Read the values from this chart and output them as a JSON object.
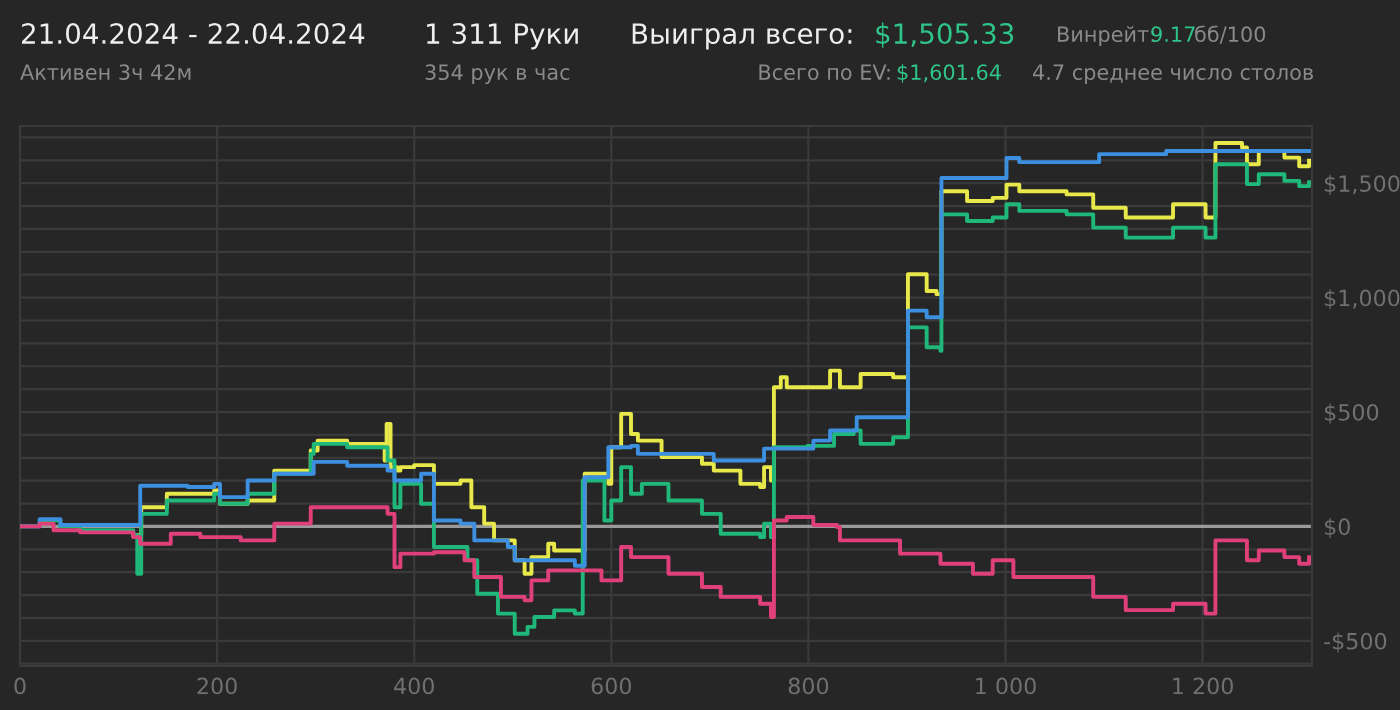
{
  "chart_data": {
    "type": "step",
    "title": "21.04.2024 - 22.04.2024",
    "subtitle": "Активен 3ч 42м",
    "annotations": [
      "1 311 Руки",
      "354 рук в час",
      "Выиграл всего:",
      "$1,505.33",
      "Всего по EV:",
      "$1,601.64",
      "Винрейт:",
      "9.17",
      "бб/100",
      "4.7 среднее число столов"
    ],
    "series": [
      {
        "color": "#e8e84a",
        "x": [
          115,
          123,
          149,
          197,
          203,
          231,
          258,
          295,
          302,
          332,
          370,
          372,
          376,
          383,
          386,
          400,
          420,
          447,
          458,
          471,
          481,
          502,
          512,
          519,
          536,
          542,
          566,
          573,
          597,
          600,
          610,
          620,
          627,
          641,
          651,
          692,
          704,
          731,
          751,
          755,
          762,
          765,
          772,
          778,
          805,
          822,
          832,
          853,
          886,
          900,
          901,
          920,
          930,
          935,
          961,
          987,
          1001,
          1014,
          1062,
          1089,
          1122,
          1170,
          1203,
          1213,
          1240,
          1245,
          1257,
          1283,
          1298,
          1308
        ],
        "values": [
          -38,
          84,
          143,
          157,
          99,
          113,
          244,
          332,
          375,
          361,
          288,
          448,
          259,
          244,
          259,
          268,
          186,
          201,
          84,
          12,
          -61,
          -148,
          -207,
          -134,
          -76,
          -105,
          -105,
          230,
          186,
          346,
          492,
          404,
          375,
          375,
          303,
          274,
          244,
          186,
          172,
          259,
          201,
          608,
          652,
          608,
          608,
          681,
          608,
          666,
          652,
          652,
          1102,
          1029,
          1015,
          1465,
          1422,
          1436,
          1494,
          1465,
          1451,
          1393,
          1350,
          1408,
          1350,
          1676,
          1656,
          1583,
          1641,
          1612,
          1574,
          1598
        ]
      },
      {
        "color": "#1fb87a",
        "x": [
          0,
          20,
          41,
          61,
          115,
          119,
          123,
          149,
          197,
          203,
          231,
          258,
          295,
          298,
          332,
          373,
          380,
          386,
          407,
          420,
          454,
          464,
          485,
          502,
          515,
          522,
          542,
          563,
          571,
          593,
          600,
          610,
          620,
          631,
          658,
          692,
          711,
          751,
          755,
          762,
          765,
          799,
          826,
          846,
          853,
          886,
          901,
          920,
          934,
          935,
          961,
          987,
          1001,
          1014,
          1062,
          1089,
          1122,
          1170,
          1203,
          1213,
          1240,
          1245,
          1257,
          1283,
          1298,
          1308
        ],
        "values": [
          0,
          26,
          0,
          -17,
          -38,
          -207,
          55,
          113,
          143,
          99,
          143,
          230,
          317,
          361,
          346,
          288,
          84,
          186,
          99,
          -90,
          -148,
          -294,
          -381,
          -469,
          -439,
          -396,
          -367,
          -381,
          201,
          26,
          113,
          259,
          143,
          186,
          113,
          55,
          -32,
          -47,
          12,
          -47,
          346,
          352,
          404,
          419,
          361,
          390,
          870,
          783,
          768,
          1364,
          1335,
          1350,
          1408,
          1379,
          1364,
          1306,
          1262,
          1306,
          1262,
          1583,
          1583,
          1496,
          1539,
          1510,
          1487,
          1504
        ]
      },
      {
        "color": "#3d8fe0",
        "x": [
          0,
          20,
          41,
          115,
          122,
          170,
          197,
          203,
          231,
          258,
          298,
          332,
          373,
          380,
          407,
          420,
          447,
          461,
          495,
          502,
          563,
          573,
          597,
          620,
          627,
          704,
          755,
          805,
          822,
          849,
          901,
          920,
          935,
          1001,
          1014,
          1095,
          1163,
          1308
        ],
        "values": [
          0,
          32,
          6,
          6,
          178,
          172,
          186,
          128,
          201,
          230,
          282,
          265,
          244,
          201,
          230,
          26,
          12,
          -61,
          -90,
          -148,
          -172,
          215,
          346,
          352,
          317,
          288,
          340,
          375,
          419,
          477,
          943,
          914,
          1523,
          1610,
          1592,
          1627,
          1641,
          1641
        ]
      },
      {
        "color": "#e0407a",
        "x": [
          0,
          20,
          34,
          61,
          115,
          122,
          153,
          183,
          224,
          258,
          295,
          332,
          373,
          380,
          386,
          420,
          451,
          461,
          485,
          488,
          512,
          519,
          536,
          590,
          610,
          620,
          658,
          692,
          711,
          751,
          762,
          765,
          778,
          805,
          829,
          832,
          893,
          934,
          967,
          987,
          1008,
          1075,
          1089,
          1122,
          1170,
          1203,
          1213,
          1240,
          1245,
          1257,
          1283,
          1298,
          1308
        ],
        "values": [
          0,
          12,
          -17,
          -26,
          -47,
          -76,
          -32,
          -47,
          -61,
          12,
          84,
          84,
          55,
          -178,
          -119,
          -113,
          -148,
          -221,
          -221,
          -308,
          -323,
          -236,
          -192,
          -236,
          -90,
          -134,
          -207,
          -265,
          -308,
          -338,
          -396,
          26,
          41,
          6,
          -3,
          -61,
          -119,
          -163,
          -207,
          -148,
          -221,
          -221,
          -308,
          -366,
          -338,
          -381,
          -61,
          -61,
          -148,
          -105,
          -134,
          -163,
          -134
        ]
      }
    ],
    "xlim": [
      0,
      1311
    ],
    "xticks": [
      0,
      200,
      400,
      600,
      800,
      {
        "value": 1000,
        "label": "1 000"
      },
      {
        "value": 1200,
        "label": "1 200"
      }
    ],
    "ylim": [
      -610,
      1750
    ],
    "yticks": [
      {
        "value": -600,
        "label": null
      },
      {
        "value": -500,
        "label": "-$500"
      },
      {
        "value": -400,
        "label": null
      },
      {
        "value": -300,
        "label": null
      },
      {
        "value": -200,
        "label": null
      },
      {
        "value": -100,
        "label": null
      },
      {
        "value": 0,
        "label": "$0"
      },
      {
        "value": 100,
        "label": null
      },
      {
        "value": 200,
        "label": null
      },
      {
        "value": 300,
        "label": null
      },
      {
        "value": 400,
        "label": null
      },
      {
        "value": 500,
        "label": "$500"
      },
      {
        "value": 600,
        "label": null
      },
      {
        "value": 700,
        "label": null
      },
      {
        "value": 800,
        "label": null
      },
      {
        "value": 900,
        "label": null
      },
      {
        "value": 1000,
        "label": "$1,000"
      },
      {
        "value": 1100,
        "label": null
      },
      {
        "value": 1200,
        "label": null
      },
      {
        "value": 1300,
        "label": null
      },
      {
        "value": 1400,
        "label": null
      },
      {
        "value": 1500,
        "label": "$1,500"
      },
      {
        "value": 1600,
        "label": null
      },
      {
        "value": 1700,
        "label": null
      }
    ],
    "ref_lines": [
      {
        "axis": "y",
        "value": 0,
        "color": "#9a9a9a"
      }
    ],
    "grid": true,
    "legend": false,
    "line_style": "solid",
    "marker": "none"
  }
}
